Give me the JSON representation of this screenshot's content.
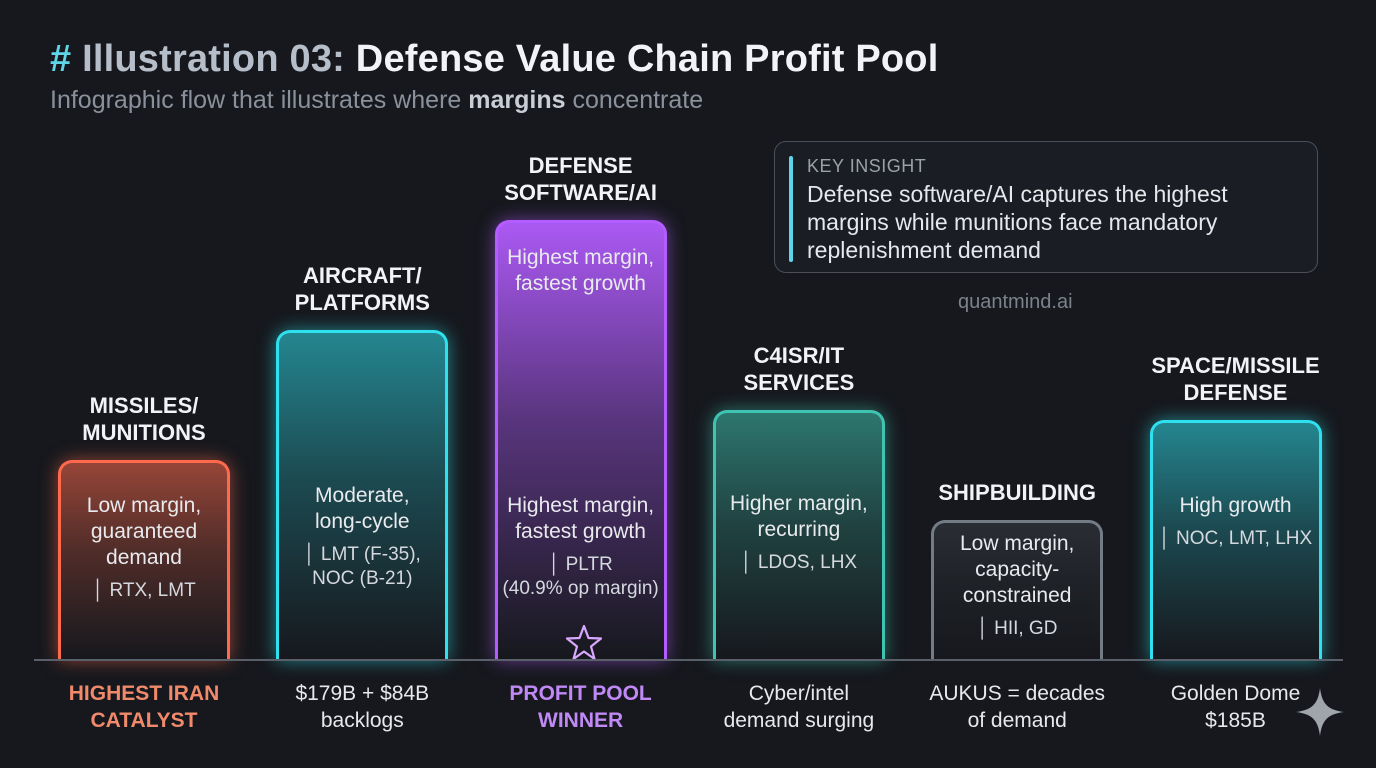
{
  "title": {
    "hash": "#",
    "prefix": "Illustration 03:",
    "main": "Defense Value Chain Profit Pool"
  },
  "subtitle": {
    "before": "Infographic flow that illustrates where",
    "bold": "margins",
    "after": "concentrate"
  },
  "insight": {
    "heading": "KEY INSIGHT",
    "text": "Defense software/AI captures the highest margins while munitions face mandatory replenishment demand"
  },
  "brand": "quantmind.ai",
  "colors": {
    "orange": "#ff6a4d",
    "cyan": "#2fe0ee",
    "purple": "#b35cff",
    "teal": "#3fc4b2",
    "gray": "#6f7781"
  },
  "icons": [
    "star-icon",
    "sparkle-icon"
  ],
  "chart_data": {
    "type": "bar",
    "categories": [
      "MISSILES/ MUNITIONS",
      "AIRCRAFT/ PLATFORMS",
      "DEFENSE SOFTWARE/AI",
      "C4ISR/IT SERVICES",
      "SHIPBUILDING",
      "SPACE/MISSILE DEFENSE"
    ],
    "values": [
      2,
      3.3,
      4.4,
      2.5,
      1.4,
      2.4
    ],
    "bars": [
      {
        "label_lines": [
          "MISSILES/",
          "MUNITIONS"
        ],
        "color": "#ff6a4d",
        "top_text": [],
        "desc": [
          "Low margin,",
          "guaranteed",
          "demand"
        ],
        "tickers": [
          "│ RTX, LMT"
        ],
        "bottom": [
          "HIGHEST IRAN",
          "CATALYST"
        ],
        "bottom_style": "orange"
      },
      {
        "label_lines": [
          "AIRCRAFT/",
          "PLATFORMS"
        ],
        "color": "#2fe0ee",
        "top_text": [],
        "desc": [
          "Moderate,",
          "long-cycle"
        ],
        "tickers": [
          "│ LMT (F-35),",
          "NOC (B-21)"
        ],
        "bottom": [
          "$179B + $84B",
          "backlogs"
        ],
        "bottom_style": "plain"
      },
      {
        "label_lines": [
          "DEFENSE",
          "SOFTWARE/AI"
        ],
        "color": "#b35cff",
        "top_text": [
          "Highest margin,",
          "fastest growth"
        ],
        "desc": [
          "Highest margin,",
          "fastest growth"
        ],
        "tickers": [
          "│ PLTR",
          "(40.9% op margin)"
        ],
        "bottom": [
          "PROFIT POOL",
          "WINNER"
        ],
        "bottom_style": "purple"
      },
      {
        "label_lines": [
          "C4ISR/IT",
          "SERVICES"
        ],
        "color": "#3fc4b2",
        "top_text": [],
        "desc": [
          "Higher margin,",
          "recurring"
        ],
        "tickers": [
          "│ LDOS, LHX"
        ],
        "bottom": [
          "Cyber/intel",
          "demand surging"
        ],
        "bottom_style": "plain"
      },
      {
        "label_lines": [
          "SHIPBUILDING"
        ],
        "color": "#6f7781",
        "top_text": [],
        "desc": [
          "Low margin,",
          "capacity-",
          "constrained"
        ],
        "tickers": [
          "│ HII, GD"
        ],
        "bottom": [
          "AUKUS = decades",
          "of demand"
        ],
        "bottom_style": "plain"
      },
      {
        "label_lines": [
          "SPACE/MISSILE",
          "DEFENSE"
        ],
        "color": "#2fe0ee",
        "top_text": [],
        "desc": [
          "High growth"
        ],
        "tickers": [
          "│ NOC, LMT, LHX"
        ],
        "bottom": [
          "Golden Dome",
          "$185B"
        ],
        "bottom_style": "plain"
      }
    ]
  }
}
